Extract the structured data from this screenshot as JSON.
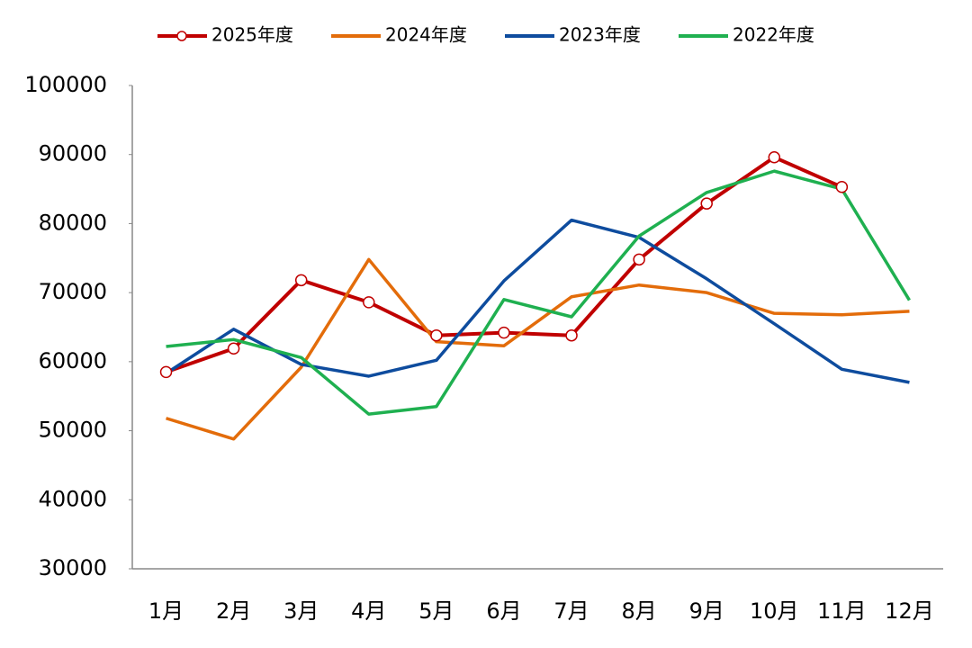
{
  "chart_data": {
    "type": "line",
    "categories": [
      "1月",
      "2月",
      "3月",
      "4月",
      "5月",
      "6月",
      "7月",
      "8月",
      "9月",
      "10月",
      "11月",
      "12月"
    ],
    "series": [
      {
        "name": "2025年度",
        "color": "#c00000",
        "marker": "circle",
        "values": [
          58500,
          61900,
          71800,
          68600,
          63800,
          64200,
          63800,
          74800,
          82900,
          89600,
          85300,
          null
        ]
      },
      {
        "name": "2024年度",
        "color": "#e36c0a",
        "values": [
          51800,
          48800,
          59200,
          74800,
          62900,
          62300,
          69400,
          71100,
          70000,
          67000,
          66800,
          67300
        ]
      },
      {
        "name": "2023年度",
        "color": "#0e4c9e",
        "values": [
          58300,
          64700,
          59600,
          57900,
          60200,
          71700,
          80500,
          78000,
          72000,
          65500,
          58900,
          57000
        ]
      },
      {
        "name": "2022年度",
        "color": "#1fb050",
        "values": [
          62200,
          63200,
          60600,
          52400,
          53500,
          69000,
          66500,
          78200,
          84500,
          87600,
          85000,
          68900
        ]
      }
    ],
    "ylim": [
      30000,
      100000
    ],
    "yticks": [
      30000,
      40000,
      50000,
      60000,
      70000,
      80000,
      90000,
      100000
    ],
    "grid": false,
    "legend": "top"
  }
}
